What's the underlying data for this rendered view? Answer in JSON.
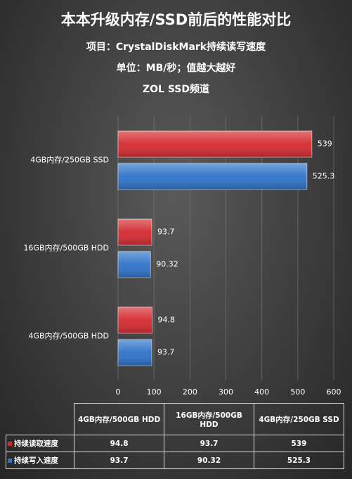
{
  "chart_data": {
    "type": "bar",
    "orientation": "horizontal",
    "title": "本本升级内存/SSD前后的性能对比",
    "subtitles": [
      "项目：CrystalDiskMark持续读写速度",
      "单位：MB/秒；值越大越好",
      "ZOL SSD频道"
    ],
    "categories": [
      "4GB内存/250GB SSD",
      "16GB内存/500GB HDD",
      "4GB内存/500GB HDD"
    ],
    "series": [
      {
        "name": "持续读取速度",
        "color": "#d42a2f",
        "values": [
          539,
          93.7,
          94.8
        ]
      },
      {
        "name": "持续写入速度",
        "color": "#2e72c8",
        "values": [
          525.3,
          90.32,
          93.7
        ]
      }
    ],
    "xlim": [
      0,
      600
    ],
    "xticks": [
      0,
      100,
      200,
      300,
      400,
      500,
      600
    ],
    "grid": true,
    "data_table": true
  }
}
